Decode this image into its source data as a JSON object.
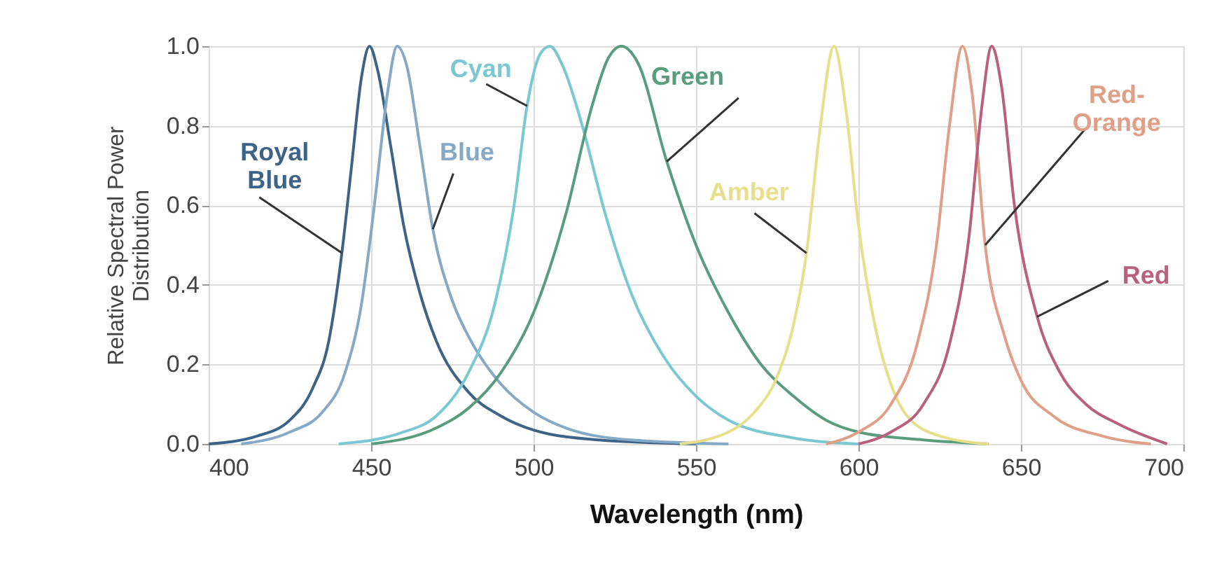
{
  "chart_data": {
    "type": "line",
    "xlabel": "Wavelength (nm)",
    "ylabel": "Relative Spectral Power Distribution",
    "xlim": [
      400,
      700
    ],
    "xticks": [
      400,
      450,
      500,
      550,
      600,
      650,
      700
    ],
    "ylim": [
      0,
      1
    ],
    "yticks": [
      {
        "value": 0,
        "label": "0.0"
      },
      0.2,
      0.4,
      0.6,
      0.8,
      {
        "value": 1,
        "label": "1.0"
      }
    ],
    "grid": true,
    "marker": "none",
    "line_style": "solid",
    "series": [
      {
        "name": "Royal Blue",
        "color": "#3d6487",
        "x": [
          400,
          415,
          425,
          432,
          437,
          441,
          444,
          447,
          449.5,
          452,
          456,
          460,
          465,
          470,
          480,
          490,
          500,
          520,
          550
        ],
        "values": [
          0,
          0.02,
          0.06,
          0.14,
          0.26,
          0.48,
          0.7,
          0.92,
          1.0,
          0.94,
          0.75,
          0.55,
          0.38,
          0.26,
          0.13,
          0.07,
          0.035,
          0.01,
          0
        ]
      },
      {
        "name": "Blue",
        "color": "#86a9c6",
        "x": [
          410,
          425,
          435,
          442,
          447,
          451,
          455,
          458,
          461,
          465,
          469,
          475,
          480,
          490,
          500,
          510,
          530,
          560
        ],
        "values": [
          0,
          0.03,
          0.08,
          0.18,
          0.35,
          0.6,
          0.88,
          1.0,
          0.95,
          0.75,
          0.54,
          0.36,
          0.27,
          0.15,
          0.08,
          0.04,
          0.01,
          0
        ]
      },
      {
        "name": "Cyan",
        "color": "#7cc8d2",
        "x": [
          440,
          460,
          470,
          480,
          488,
          494,
          498,
          502,
          505,
          509,
          515,
          522,
          530,
          540,
          550,
          560,
          580,
          600
        ],
        "values": [
          0,
          0.03,
          0.07,
          0.18,
          0.35,
          0.6,
          0.85,
          0.98,
          1.0,
          0.95,
          0.8,
          0.58,
          0.38,
          0.22,
          0.12,
          0.06,
          0.015,
          0
        ]
      },
      {
        "name": "Green",
        "color": "#5a9c7e",
        "x": [
          450,
          470,
          480,
          490,
          500,
          510,
          518,
          523,
          527,
          532,
          541,
          550,
          560,
          570,
          580,
          590,
          600,
          620,
          640
        ],
        "values": [
          0,
          0.04,
          0.09,
          0.18,
          0.33,
          0.58,
          0.85,
          0.97,
          1.0,
          0.96,
          0.71,
          0.5,
          0.33,
          0.2,
          0.12,
          0.06,
          0.03,
          0.01,
          0
        ]
      },
      {
        "name": "Amber",
        "color": "#e6df8c",
        "x": [
          545,
          560,
          568,
          575,
          580,
          584,
          588,
          592.5,
          596,
          600,
          605,
          610,
          615,
          625,
          640
        ],
        "values": [
          0,
          0.03,
          0.08,
          0.17,
          0.3,
          0.48,
          0.78,
          1.0,
          0.85,
          0.55,
          0.3,
          0.15,
          0.07,
          0.02,
          0
        ]
      },
      {
        "name": "Red-Orange",
        "color": "#e0a088",
        "x": [
          590,
          600,
          610,
          618,
          624,
          628,
          632,
          635,
          639,
          645,
          650,
          660,
          675,
          690
        ],
        "values": [
          0,
          0.03,
          0.1,
          0.25,
          0.5,
          0.8,
          1.0,
          0.88,
          0.5,
          0.27,
          0.16,
          0.07,
          0.02,
          0
        ]
      },
      {
        "name": "Red",
        "color": "#b8607e",
        "x": [
          600,
          610,
          620,
          628,
          634,
          638,
          641,
          644,
          648,
          655,
          662,
          670,
          680,
          695
        ],
        "values": [
          0,
          0.03,
          0.1,
          0.25,
          0.52,
          0.85,
          1.0,
          0.9,
          0.6,
          0.32,
          0.18,
          0.1,
          0.05,
          0
        ]
      }
    ]
  }
}
